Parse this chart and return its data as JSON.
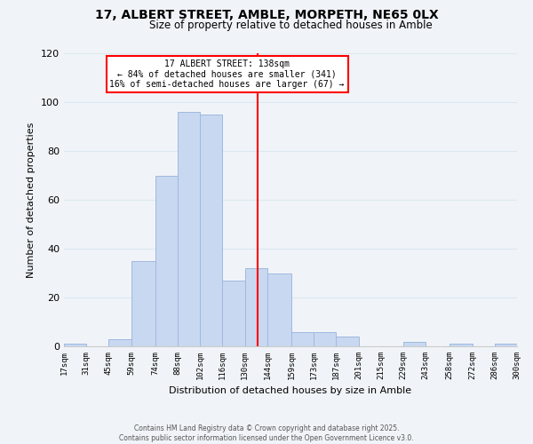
{
  "title1": "17, ALBERT STREET, AMBLE, MORPETH, NE65 0LX",
  "title2": "Size of property relative to detached houses in Amble",
  "xlabel": "Distribution of detached houses by size in Amble",
  "ylabel": "Number of detached properties",
  "bar_color": "#c8d8f0",
  "bar_edge_color": "#a0b8e0",
  "bin_edges": [
    17,
    31,
    45,
    59,
    74,
    88,
    102,
    116,
    130,
    144,
    159,
    173,
    187,
    201,
    215,
    229,
    243,
    258,
    272,
    286,
    300
  ],
  "bin_labels": [
    "17sqm",
    "31sqm",
    "45sqm",
    "59sqm",
    "74sqm",
    "88sqm",
    "102sqm",
    "116sqm",
    "130sqm",
    "144sqm",
    "159sqm",
    "173sqm",
    "187sqm",
    "201sqm",
    "215sqm",
    "229sqm",
    "243sqm",
    "258sqm",
    "272sqm",
    "286sqm",
    "300sqm"
  ],
  "counts": [
    1,
    0,
    3,
    35,
    70,
    96,
    95,
    27,
    32,
    30,
    6,
    6,
    4,
    0,
    0,
    2,
    0,
    1,
    0,
    1
  ],
  "vline_x": 138,
  "ylim": [
    0,
    120
  ],
  "yticks": [
    0,
    20,
    40,
    60,
    80,
    100,
    120
  ],
  "annotation_title": "17 ALBERT STREET: 138sqm",
  "annotation_line1": "← 84% of detached houses are smaller (341)",
  "annotation_line2": "16% of semi-detached houses are larger (67) →",
  "grid_color": "#dde8f0",
  "background_color": "#f0f4f8",
  "footer1": "Contains HM Land Registry data © Crown copyright and database right 2025.",
  "footer2": "Contains public sector information licensed under the Open Government Licence v3.0."
}
